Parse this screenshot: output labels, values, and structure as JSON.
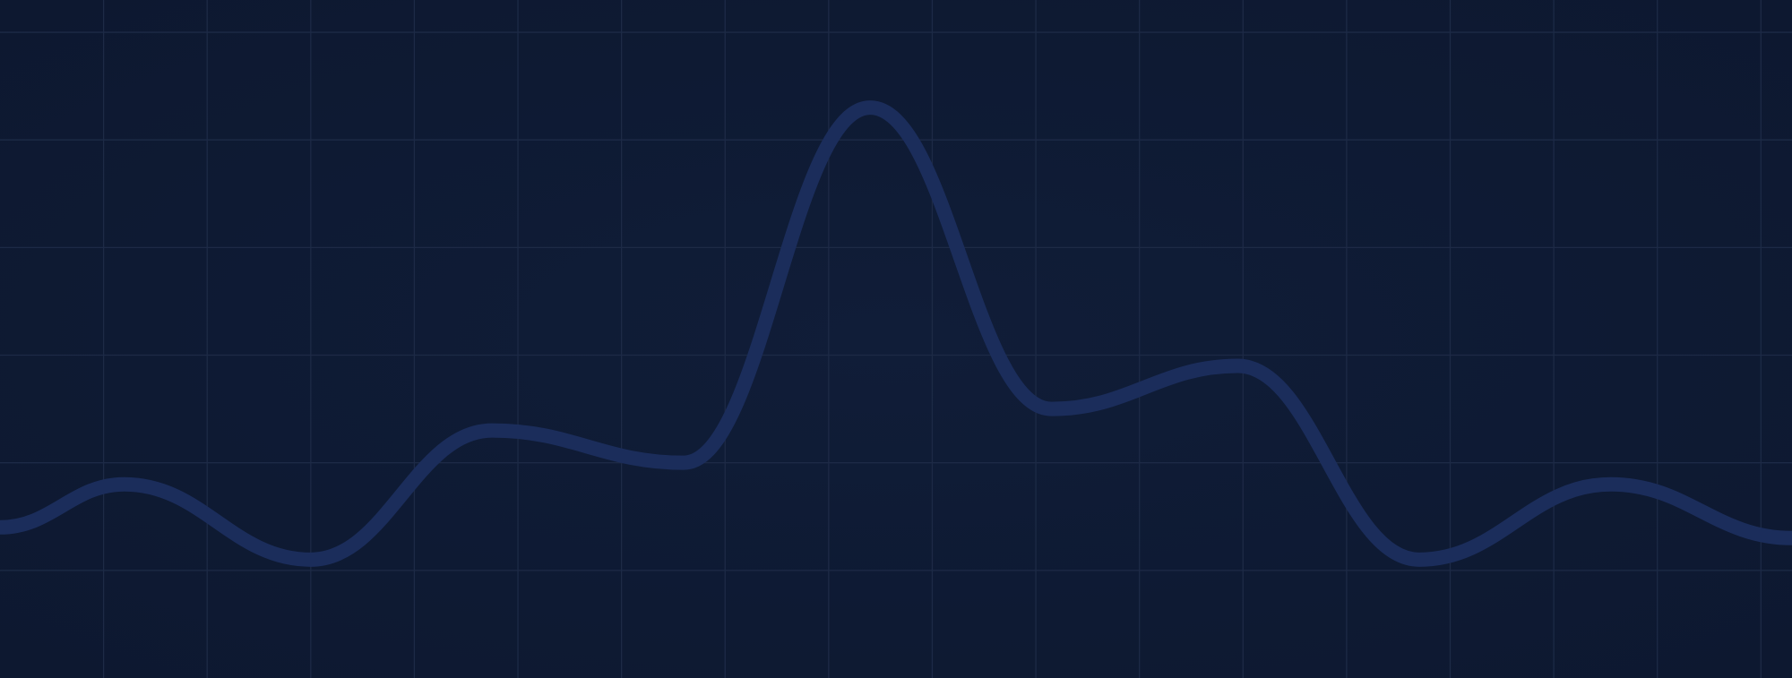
{
  "colors": {
    "background": "#0f1b34",
    "grid": "#1d2a46",
    "line": "#1b2d5b"
  },
  "chart_data": {
    "type": "line",
    "title": "",
    "xlabel": "",
    "ylabel": "",
    "grid": true,
    "legend": "none",
    "x_ticks": [
      1,
      2,
      3,
      4,
      5,
      6,
      7,
      8,
      9,
      10,
      11,
      12,
      13,
      14,
      15,
      16,
      17,
      18
    ],
    "y_ticks": [
      1,
      2,
      3,
      4,
      5,
      6,
      7
    ],
    "x": [
      0,
      1.2,
      3,
      4.75,
      6.6,
      8.4,
      10.15,
      11.95,
      13.7,
      15.55,
      17.3
    ],
    "values": [
      1.4,
      1.8,
      1.1,
      2.3,
      2.0,
      5.3,
      2.5,
      2.9,
      1.1,
      1.8,
      1.3
    ],
    "xlim": [
      0,
      17.3
    ],
    "ylim": [
      0,
      6.3
    ]
  }
}
